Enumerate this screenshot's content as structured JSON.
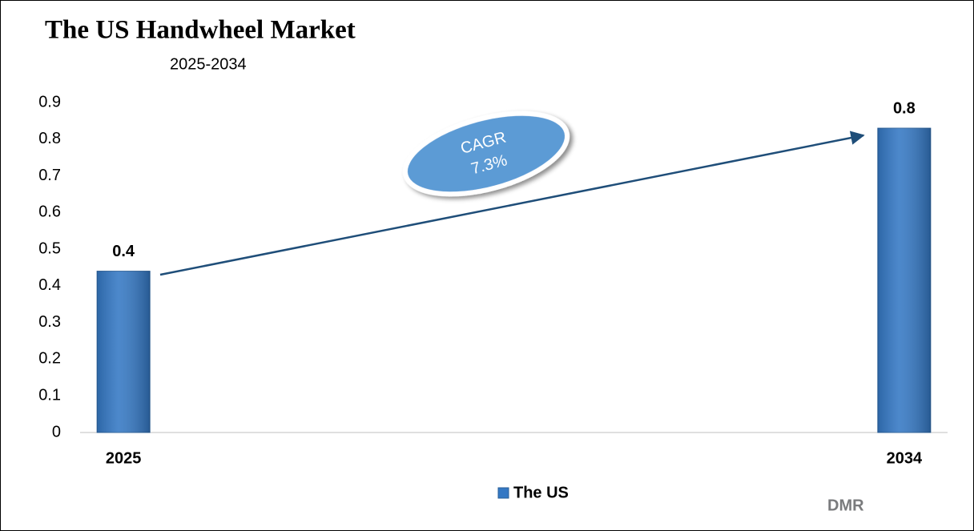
{
  "chart_data": {
    "type": "bar",
    "title": "The US Handwheel Market",
    "subtitle": "2025-2034",
    "categories": [
      "2025",
      "2034"
    ],
    "series": [
      {
        "name": "The US",
        "color": "#3478c4",
        "values": [
          0.44,
          0.83
        ],
        "value_labels": [
          "0.4",
          "0.8"
        ]
      }
    ],
    "ylim": [
      0,
      0.9
    ],
    "yticks": [
      0,
      0.1,
      0.2,
      0.3,
      0.4,
      0.5,
      0.6,
      0.7,
      0.8,
      0.9
    ],
    "grid": false,
    "legend": "bottom",
    "annotation": {
      "label": "CAGR",
      "value": "7.3%"
    },
    "logo": "DMR"
  }
}
